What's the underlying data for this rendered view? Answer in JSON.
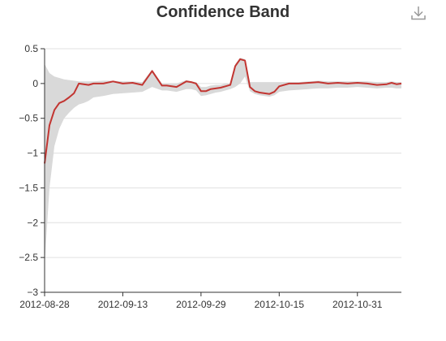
{
  "toolbox": {
    "icon": "download-icon"
  },
  "chart_data": {
    "type": "area",
    "title": "Confidence Band",
    "xlabel": "",
    "ylabel": "",
    "ylim": [
      -3,
      0.5
    ],
    "y_ticks": [
      "0.5",
      "0",
      "−0.5",
      "−1",
      "−1.5",
      "−2",
      "−2.5",
      "−3"
    ],
    "y_tick_values": [
      0.5,
      0,
      -0.5,
      -1,
      -1.5,
      -2,
      -2.5,
      -3
    ],
    "x_ticks": [
      "2012-08-28",
      "2012-09-13",
      "2012-09-29",
      "2012-10-15",
      "2012-10-31"
    ],
    "x_tick_values": [
      "2012-08-28",
      "2012-09-13",
      "2012-09-29",
      "2012-10-15",
      "2012-10-31"
    ],
    "xlim": [
      "2012-08-28",
      "2012-11-09"
    ],
    "grid": true,
    "colors": {
      "line": "#c23531",
      "band": "#d9d9d9",
      "grid": "#e0e0e0",
      "axis": "#333333"
    },
    "series": [
      {
        "name": "",
        "role": "value",
        "x": [
          "2012-08-28",
          "2012-08-29",
          "2012-08-30",
          "2012-08-31",
          "2012-09-01",
          "2012-09-02",
          "2012-09-03",
          "2012-09-04",
          "2012-09-05",
          "2012-09-06",
          "2012-09-07",
          "2012-09-09",
          "2012-09-11",
          "2012-09-13",
          "2012-09-15",
          "2012-09-17",
          "2012-09-19",
          "2012-09-21",
          "2012-09-22",
          "2012-09-24",
          "2012-09-26",
          "2012-09-27",
          "2012-09-28",
          "2012-09-29",
          "2012-09-30",
          "2012-10-01",
          "2012-10-02",
          "2012-10-03",
          "2012-10-04",
          "2012-10-05",
          "2012-10-06",
          "2012-10-07",
          "2012-10-08",
          "2012-10-09",
          "2012-10-10",
          "2012-10-11",
          "2012-10-12",
          "2012-10-13",
          "2012-10-14",
          "2012-10-15",
          "2012-10-17",
          "2012-10-19",
          "2012-10-21",
          "2012-10-23",
          "2012-10-25",
          "2012-10-27",
          "2012-10-29",
          "2012-10-31",
          "2012-11-02",
          "2012-11-04",
          "2012-11-06",
          "2012-11-07",
          "2012-11-08",
          "2012-11-09"
        ],
        "y": [
          -1.15,
          -0.6,
          -0.38,
          -0.28,
          -0.25,
          -0.2,
          -0.14,
          0.0,
          -0.01,
          -0.02,
          0.0,
          0.0,
          0.03,
          0.0,
          0.01,
          -0.02,
          0.18,
          -0.03,
          -0.03,
          -0.05,
          0.03,
          0.02,
          0.0,
          -0.11,
          -0.11,
          -0.08,
          -0.07,
          -0.06,
          -0.04,
          -0.02,
          0.25,
          0.35,
          0.33,
          -0.05,
          -0.11,
          -0.13,
          -0.14,
          -0.15,
          -0.12,
          -0.04,
          0.0,
          0.0,
          0.01,
          0.02,
          0.0,
          0.01,
          0.0,
          0.01,
          0.0,
          -0.02,
          -0.01,
          0.01,
          -0.01,
          0.0
        ]
      },
      {
        "name": "",
        "role": "band-upper",
        "x": [
          "2012-08-28",
          "2012-08-29",
          "2012-08-30",
          "2012-08-31",
          "2012-09-01",
          "2012-09-02",
          "2012-09-03",
          "2012-09-04",
          "2012-09-05",
          "2012-09-06",
          "2012-09-07",
          "2012-09-09",
          "2012-09-11",
          "2012-09-13",
          "2012-09-15",
          "2012-09-17",
          "2012-09-19",
          "2012-09-21",
          "2012-09-22",
          "2012-09-24",
          "2012-09-26",
          "2012-09-27",
          "2012-09-28",
          "2012-09-29",
          "2012-09-30",
          "2012-10-01",
          "2012-10-02",
          "2012-10-03",
          "2012-10-04",
          "2012-10-05",
          "2012-10-06",
          "2012-10-07",
          "2012-10-08",
          "2012-10-09",
          "2012-10-10",
          "2012-10-11",
          "2012-10-12",
          "2012-10-13",
          "2012-10-14",
          "2012-10-15",
          "2012-10-17",
          "2012-10-19",
          "2012-10-21",
          "2012-10-23",
          "2012-10-25",
          "2012-10-27",
          "2012-10-29",
          "2012-10-31",
          "2012-11-02",
          "2012-11-04",
          "2012-11-06",
          "2012-11-07",
          "2012-11-08",
          "2012-11-09"
        ],
        "y": [
          0.28,
          0.15,
          0.1,
          0.08,
          0.06,
          0.05,
          0.04,
          0.03,
          0.03,
          0.03,
          0.03,
          0.04,
          0.04,
          0.03,
          0.03,
          0.02,
          0.2,
          0.0,
          0.0,
          0.0,
          0.05,
          0.03,
          0.02,
          -0.05,
          -0.05,
          -0.03,
          -0.02,
          -0.02,
          0.0,
          0.0,
          0.28,
          0.37,
          0.35,
          0.02,
          0.02,
          0.02,
          0.02,
          0.02,
          0.02,
          0.02,
          0.02,
          0.02,
          0.03,
          0.04,
          0.03,
          0.03,
          0.03,
          0.03,
          0.03,
          0.02,
          0.02,
          0.03,
          0.02,
          0.02
        ]
      },
      {
        "name": "",
        "role": "band-lower",
        "x": [
          "2012-08-28",
          "2012-08-29",
          "2012-08-30",
          "2012-08-31",
          "2012-09-01",
          "2012-09-02",
          "2012-09-03",
          "2012-09-04",
          "2012-09-05",
          "2012-09-06",
          "2012-09-07",
          "2012-09-09",
          "2012-09-11",
          "2012-09-13",
          "2012-09-15",
          "2012-09-17",
          "2012-09-19",
          "2012-09-21",
          "2012-09-22",
          "2012-09-24",
          "2012-09-26",
          "2012-09-27",
          "2012-09-28",
          "2012-09-29",
          "2012-09-30",
          "2012-10-01",
          "2012-10-02",
          "2012-10-03",
          "2012-10-04",
          "2012-10-05",
          "2012-10-06",
          "2012-10-07",
          "2012-10-08",
          "2012-10-09",
          "2012-10-10",
          "2012-10-11",
          "2012-10-12",
          "2012-10-13",
          "2012-10-14",
          "2012-10-15",
          "2012-10-17",
          "2012-10-19",
          "2012-10-21",
          "2012-10-23",
          "2012-10-25",
          "2012-10-27",
          "2012-10-29",
          "2012-10-31",
          "2012-11-02",
          "2012-11-04",
          "2012-11-06",
          "2012-11-07",
          "2012-11-08",
          "2012-11-09"
        ],
        "y": [
          -2.6,
          -1.5,
          -0.9,
          -0.65,
          -0.5,
          -0.42,
          -0.35,
          -0.3,
          -0.28,
          -0.25,
          -0.2,
          -0.18,
          -0.15,
          -0.14,
          -0.13,
          -0.12,
          -0.05,
          -0.1,
          -0.1,
          -0.12,
          -0.08,
          -0.08,
          -0.1,
          -0.18,
          -0.17,
          -0.15,
          -0.13,
          -0.12,
          -0.1,
          -0.08,
          -0.05,
          0.0,
          0.1,
          -0.11,
          -0.15,
          -0.17,
          -0.18,
          -0.19,
          -0.17,
          -0.12,
          -0.1,
          -0.09,
          -0.08,
          -0.07,
          -0.07,
          -0.06,
          -0.06,
          -0.05,
          -0.06,
          -0.07,
          -0.06,
          -0.06,
          -0.07,
          -0.07
        ]
      }
    ]
  }
}
